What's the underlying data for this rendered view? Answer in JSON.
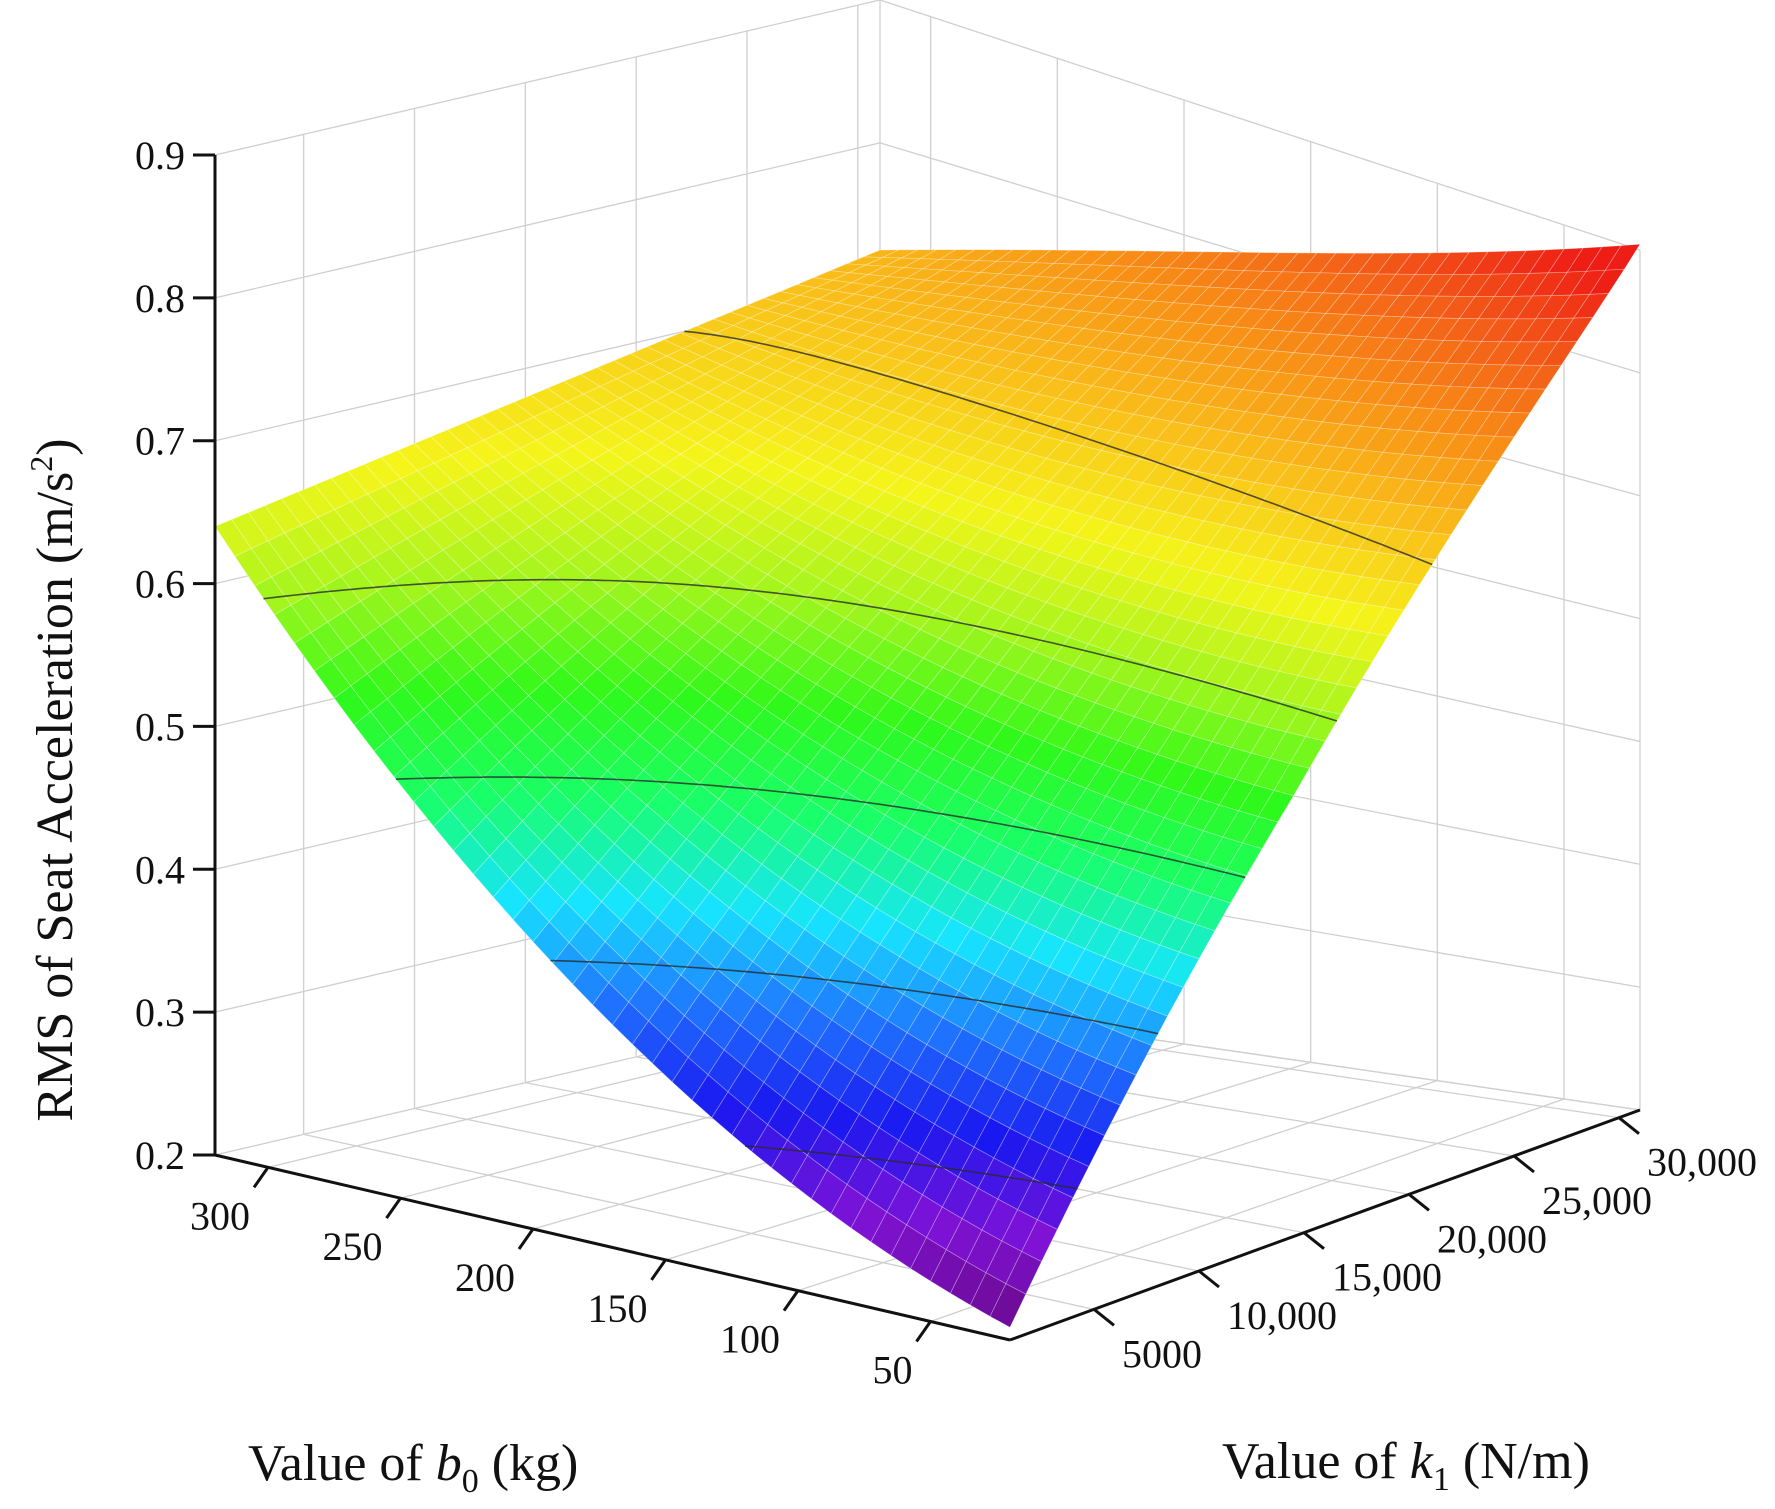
{
  "chart_data": {
    "type": "surface",
    "title": "",
    "zlabel": "RMS of Seat Acceleration (m/s",
    "zlabel_sup": "2",
    "zlabel_end": ")",
    "xlabel": "Value of ",
    "xlabel_var": "b",
    "xlabel_sub": "0",
    "xlabel_unit": " (kg)",
    "ylabel": "Value of ",
    "ylabel_var": "k",
    "ylabel_sub": "1",
    "ylabel_unit": " (N/m)",
    "x_ticks": [
      "300",
      "250",
      "200",
      "150",
      "100",
      "50"
    ],
    "x_tick_values": [
      300,
      250,
      200,
      150,
      100,
      50
    ],
    "y_ticks": [
      "5000",
      "10,000",
      "15,000",
      "20,000",
      "25,000",
      "30,000"
    ],
    "y_tick_values": [
      5000,
      10000,
      15000,
      20000,
      25000,
      30000
    ],
    "z_ticks": [
      "0.2",
      "0.3",
      "0.4",
      "0.5",
      "0.6",
      "0.7",
      "0.8",
      "0.9"
    ],
    "z_tick_values": [
      0.2,
      0.3,
      0.4,
      0.5,
      0.6,
      0.7,
      0.8,
      0.9
    ],
    "xlim": [
      20,
      320
    ],
    "ylim": [
      1000,
      31000
    ],
    "zlim": [
      0.2,
      0.9
    ],
    "grid": true,
    "colormap": [
      "#6a0a8a",
      "#7f12d6",
      "#1a18f0",
      "#1f73ff",
      "#17e4ff",
      "#19ff6a",
      "#2ff91a",
      "#a4f51d",
      "#f5f51a",
      "#f9c21a",
      "#f89116",
      "#f35d18",
      "#ee1d16"
    ],
    "surface_corners": [
      {
        "b0": 320,
        "k1": 1000,
        "z": 0.64
      },
      {
        "b0": 320,
        "k1": 31000,
        "z": 0.725
      },
      {
        "b0": 20,
        "k1": 31000,
        "z": 0.88
      },
      {
        "b0": 20,
        "k1": 1000,
        "z": 0.21
      }
    ],
    "contour_levels": [
      0.3,
      0.4,
      0.5,
      0.6,
      0.7
    ]
  }
}
